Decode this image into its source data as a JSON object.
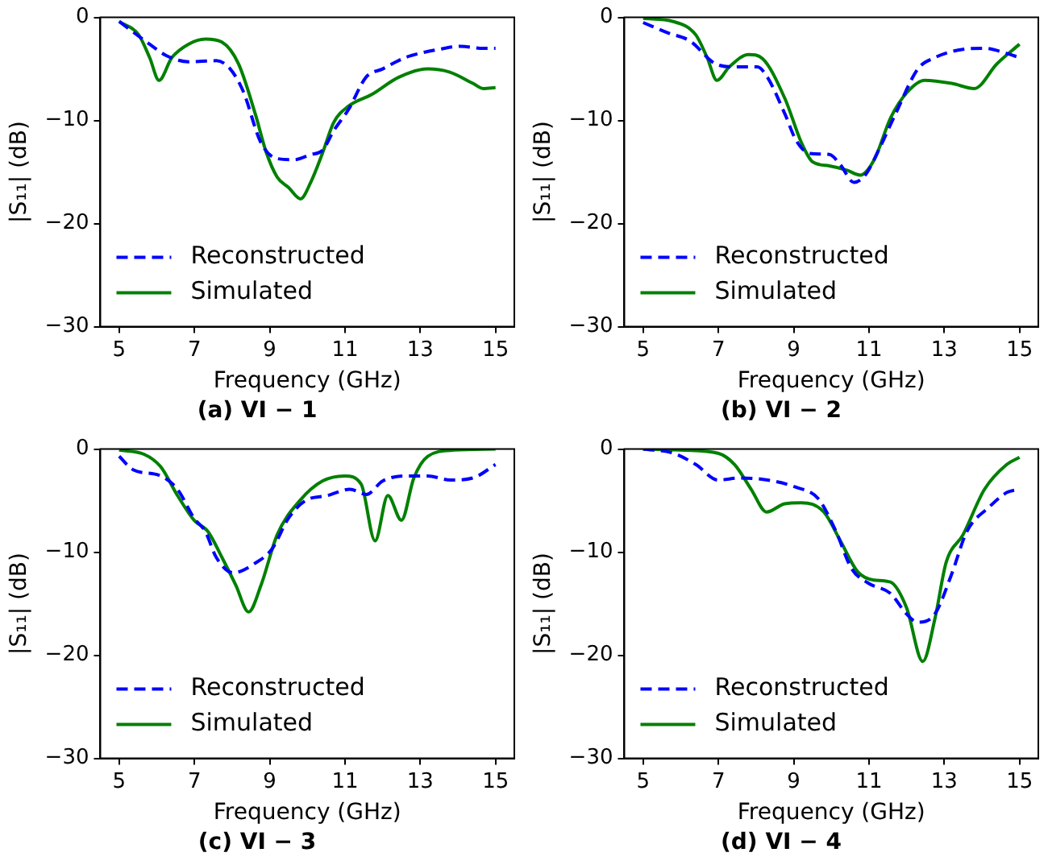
{
  "chart_data": [
    {
      "type": "line",
      "title": "(a) VI − 1",
      "xlabel": "Frequency (GHz)",
      "ylabel": "|S₁₁| (dB)",
      "xlim": [
        4.5,
        15.5
      ],
      "xticks": [
        5,
        7,
        9,
        11,
        13,
        15
      ],
      "ylim": [
        -30,
        0
      ],
      "yticks": [
        0,
        -10,
        -20,
        -30
      ],
      "grid": false,
      "legend": "bottom left",
      "marker": "none",
      "series": [
        {
          "name": "Reconstructed",
          "color": "#0000ff",
          "line_style": "dashed",
          "x": [
            5,
            5.81,
            6.25,
            6.84,
            7.58,
            7.95,
            8.3,
            8.76,
            9.2,
            9.65,
            10.09,
            10.4,
            10.7,
            11.1,
            11.56,
            12,
            12.6,
            13.5,
            14.07,
            14.67,
            15
          ],
          "values": [
            -0.4,
            -2.6,
            -3.7,
            -4.3,
            -4.2,
            -5.0,
            -7.2,
            -12.1,
            -13.7,
            -13.8,
            -13.3,
            -12.9,
            -11,
            -8.9,
            -5.8,
            -5.0,
            -3.9,
            -3.1,
            -2.8,
            -3.0,
            -3.0
          ]
        },
        {
          "name": "Simulated",
          "color": "#008000",
          "line_style": "solid",
          "x": [
            5,
            5.52,
            5.81,
            6.06,
            6.4,
            6.84,
            7.29,
            7.73,
            8.17,
            8.62,
            8.9,
            9.2,
            9.5,
            9.82,
            10.09,
            10.4,
            10.7,
            11.1,
            11.7,
            12.43,
            13.2,
            13.77,
            14.4,
            14.67,
            15
          ],
          "values": [
            -0.4,
            -1.7,
            -3.9,
            -6.1,
            -3.9,
            -2.6,
            -2.1,
            -2.4,
            -4.5,
            -9.4,
            -13,
            -15.5,
            -16.5,
            -17.6,
            -16,
            -13.2,
            -10.2,
            -8.6,
            -7.5,
            -5.8,
            -5.0,
            -5.3,
            -6.4,
            -6.9,
            -6.8
          ]
        }
      ]
    },
    {
      "type": "line",
      "title": "(b) VI − 2",
      "xlabel": "Frequency (GHz)",
      "ylabel": "|S₁₁| (dB)",
      "xlim": [
        4.5,
        15.5
      ],
      "xticks": [
        5,
        7,
        9,
        11,
        13,
        15
      ],
      "ylim": [
        -30,
        0
      ],
      "yticks": [
        0,
        -10,
        -20,
        -30
      ],
      "grid": false,
      "legend": "bottom left",
      "marker": "none",
      "series": [
        {
          "name": "Reconstructed",
          "color": "#0000ff",
          "line_style": "dashed",
          "x": [
            5,
            5.66,
            6.25,
            6.92,
            7.44,
            8.03,
            8.3,
            8.77,
            9.06,
            9.43,
            9.95,
            10.24,
            10.6,
            10.9,
            11.28,
            11.7,
            12.3,
            12.75,
            13.5,
            14.07,
            14.66,
            15
          ],
          "values": [
            -0.5,
            -1.5,
            -2.3,
            -4.5,
            -4.8,
            -4.8,
            -5.8,
            -9.4,
            -11.9,
            -13.2,
            -13.3,
            -14.3,
            -16,
            -15.3,
            -12.7,
            -9.4,
            -5.0,
            -3.9,
            -3.1,
            -3.0,
            -3.5,
            -3.9
          ]
        },
        {
          "name": "Simulated",
          "color": "#008000",
          "line_style": "solid",
          "x": [
            5,
            5.8,
            6.4,
            6.7,
            6.96,
            7.29,
            7.8,
            8.17,
            8.77,
            9.2,
            9.5,
            9.95,
            10.4,
            10.77,
            11.14,
            11.58,
            12.03,
            12.48,
            13.2,
            13.8,
            14.4,
            15
          ],
          "values": [
            -0.1,
            -0.4,
            -1.7,
            -3.9,
            -6.1,
            -4.8,
            -3.6,
            -4.0,
            -7.9,
            -12.1,
            -14,
            -14.4,
            -14.8,
            -15.3,
            -13.8,
            -9.7,
            -7.2,
            -6.1,
            -6.4,
            -6.9,
            -4.5,
            -2.6
          ]
        }
      ]
    },
    {
      "type": "line",
      "title": "(c) VI − 3",
      "xlabel": "Frequency (GHz)",
      "ylabel": "|S₁₁| (dB)",
      "xlim": [
        4.5,
        15.5
      ],
      "xticks": [
        5,
        7,
        9,
        11,
        13,
        15
      ],
      "ylim": [
        -30,
        0
      ],
      "yticks": [
        0,
        -10,
        -20,
        -30
      ],
      "grid": false,
      "legend": "bottom left",
      "marker": "none",
      "series": [
        {
          "name": "Reconstructed",
          "color": "#0000ff",
          "line_style": "dashed",
          "x": [
            5,
            5.37,
            6.1,
            6.55,
            6.99,
            7.29,
            7.58,
            8.03,
            8.6,
            9.06,
            9.5,
            9.95,
            10.54,
            11.13,
            11.57,
            12,
            12.6,
            13.2,
            13.8,
            14.4,
            15
          ],
          "values": [
            -0.7,
            -2.0,
            -2.6,
            -3.9,
            -6.7,
            -8.0,
            -10.5,
            -12.0,
            -11.1,
            -9.7,
            -6.7,
            -5.0,
            -4.5,
            -3.9,
            -4.4,
            -3.1,
            -2.6,
            -2.6,
            -3.0,
            -2.8,
            -1.5
          ]
        },
        {
          "name": "Simulated",
          "color": "#008000",
          "line_style": "solid",
          "x": [
            5,
            5.66,
            6.1,
            6.55,
            6.99,
            7.36,
            7.73,
            8.1,
            8.44,
            8.77,
            9.2,
            9.8,
            10.4,
            10.99,
            11.43,
            11.8,
            12.14,
            12.5,
            12.83,
            13.2,
            13.9,
            15
          ],
          "values": [
            -0.1,
            -0.5,
            -1.7,
            -4.5,
            -6.9,
            -8.0,
            -10.5,
            -13.2,
            -15.8,
            -13.2,
            -8.3,
            -5.0,
            -3.1,
            -2.6,
            -3.4,
            -8.9,
            -4.5,
            -6.9,
            -2.8,
            -0.7,
            -0.1,
            0
          ]
        }
      ]
    },
    {
      "type": "line",
      "title": "(d) VI − 4",
      "xlabel": "Frequency (GHz)",
      "ylabel": "|S₁₁| (dB)",
      "xlim": [
        4.5,
        15.5
      ],
      "xticks": [
        5,
        7,
        9,
        11,
        13,
        15
      ],
      "ylim": [
        -30,
        0
      ],
      "yticks": [
        0,
        -10,
        -20,
        -30
      ],
      "grid": false,
      "legend": "bottom left",
      "marker": "none",
      "series": [
        {
          "name": "Reconstructed",
          "color": "#0000ff",
          "line_style": "dashed",
          "x": [
            5,
            5.8,
            6.4,
            6.99,
            7.58,
            8.3,
            9.06,
            9.65,
            10.1,
            10.54,
            10.98,
            11.57,
            12,
            12.3,
            12.75,
            13.2,
            13.6,
            14.2,
            14.67,
            15
          ],
          "values": [
            0,
            -0.4,
            -1.5,
            -3.0,
            -2.8,
            -3.0,
            -3.7,
            -4.8,
            -7.8,
            -11.6,
            -13.0,
            -14.0,
            -16,
            -16.8,
            -16,
            -12.1,
            -8.0,
            -5.6,
            -4.2,
            -3.9
          ]
        },
        {
          "name": "Simulated",
          "color": "#008000",
          "line_style": "solid",
          "x": [
            5,
            6.1,
            6.99,
            7.43,
            7.87,
            8.28,
            8.76,
            9.2,
            9.8,
            10.24,
            10.7,
            11.13,
            11.57,
            12,
            12.43,
            12.75,
            13.05,
            13.5,
            14.07,
            14.66,
            15
          ],
          "values": [
            0,
            -0.1,
            -0.4,
            -1.5,
            -3.9,
            -6.1,
            -5.3,
            -5.2,
            -6.1,
            -8.9,
            -11.9,
            -12.7,
            -12.9,
            -15.4,
            -20.6,
            -16.5,
            -11,
            -8.3,
            -3.9,
            -1.5,
            -0.8
          ]
        }
      ]
    }
  ]
}
